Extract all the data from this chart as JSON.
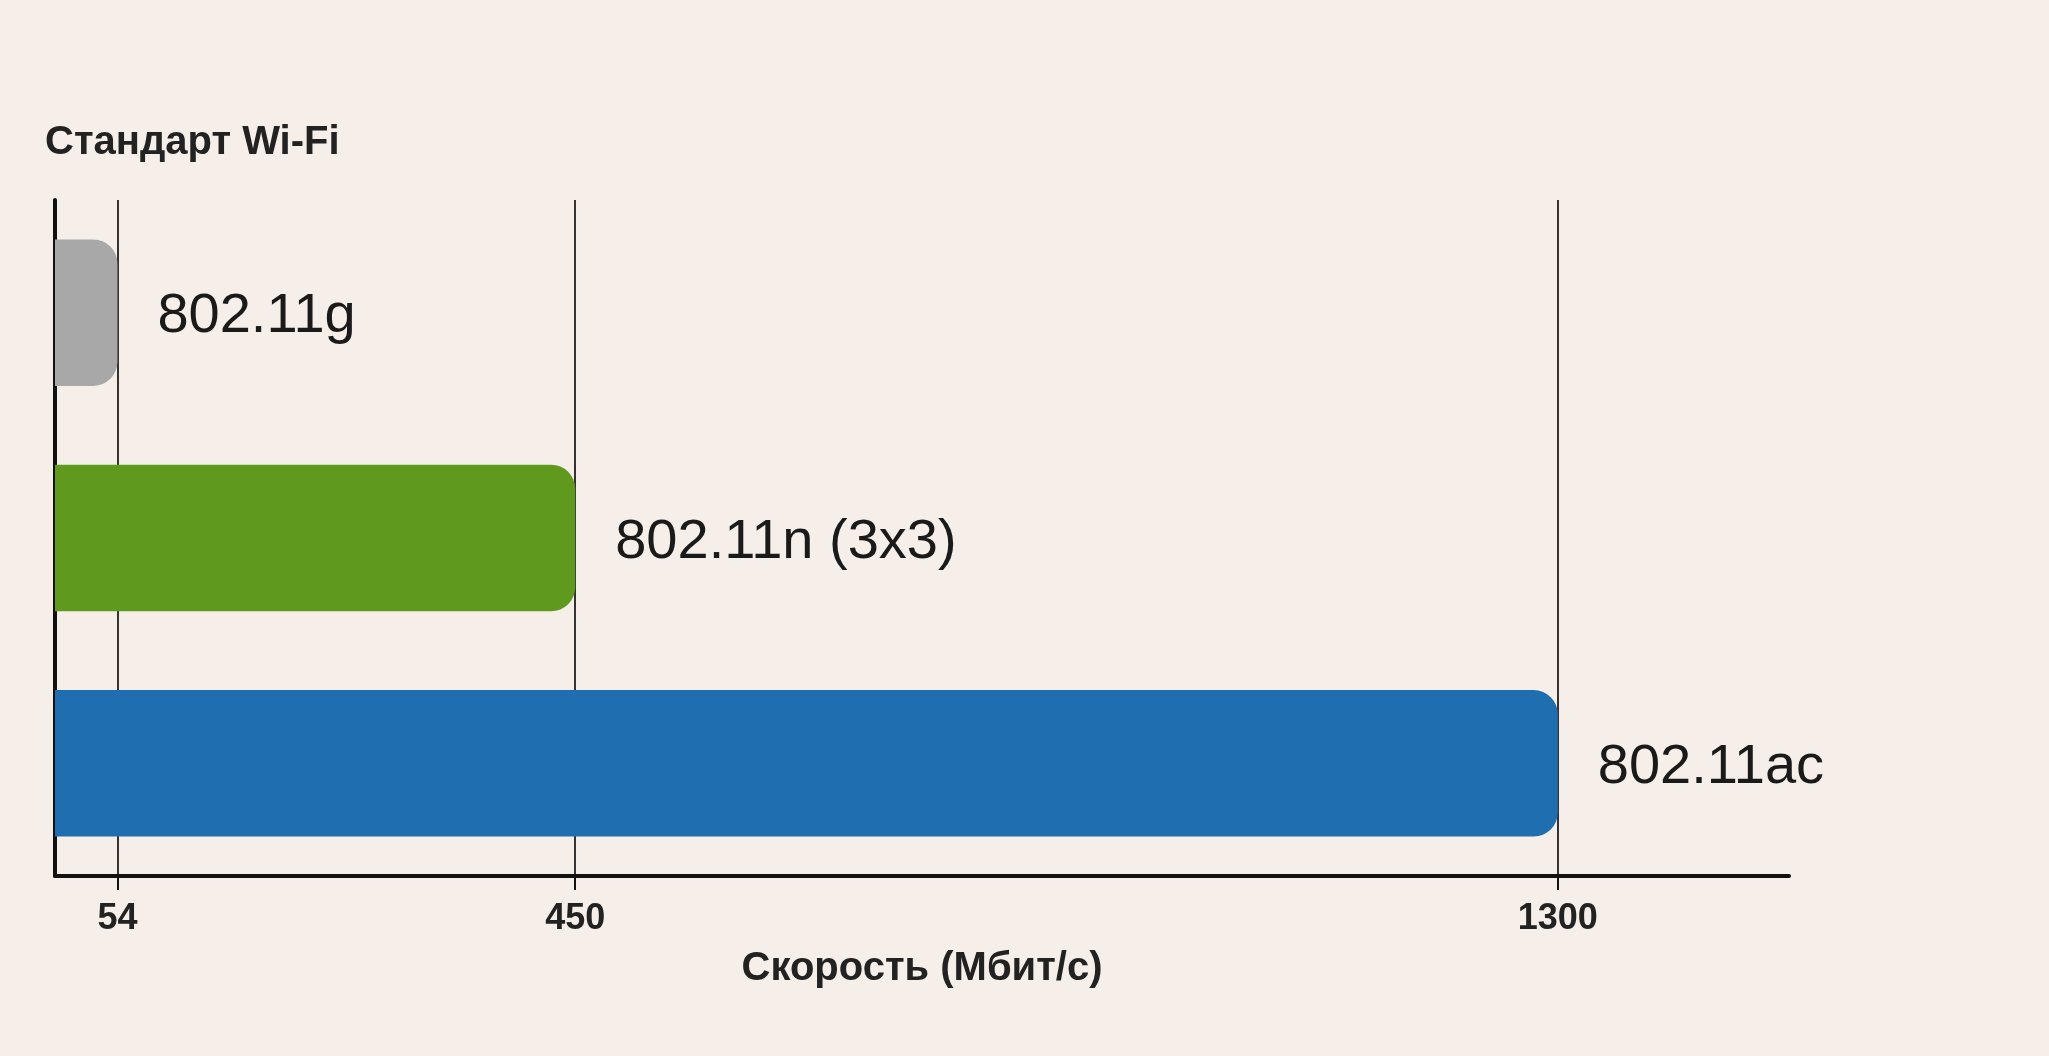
{
  "chart_data": {
    "type": "bar",
    "orientation": "horizontal",
    "ylabel": "Стандарт Wi-Fi",
    "xlabel": "Скорость (Мбит/с)",
    "categories": [
      "802.11g",
      "802.11n (3x3)",
      "802.11ac"
    ],
    "values": [
      54,
      450,
      1300
    ],
    "colors": [
      "#a8a8a8",
      "#5f9a1e",
      "#1f6fb0"
    ],
    "xlim": [
      0,
      1500
    ],
    "xticks": [
      54,
      450,
      1300
    ],
    "grid": "x"
  }
}
